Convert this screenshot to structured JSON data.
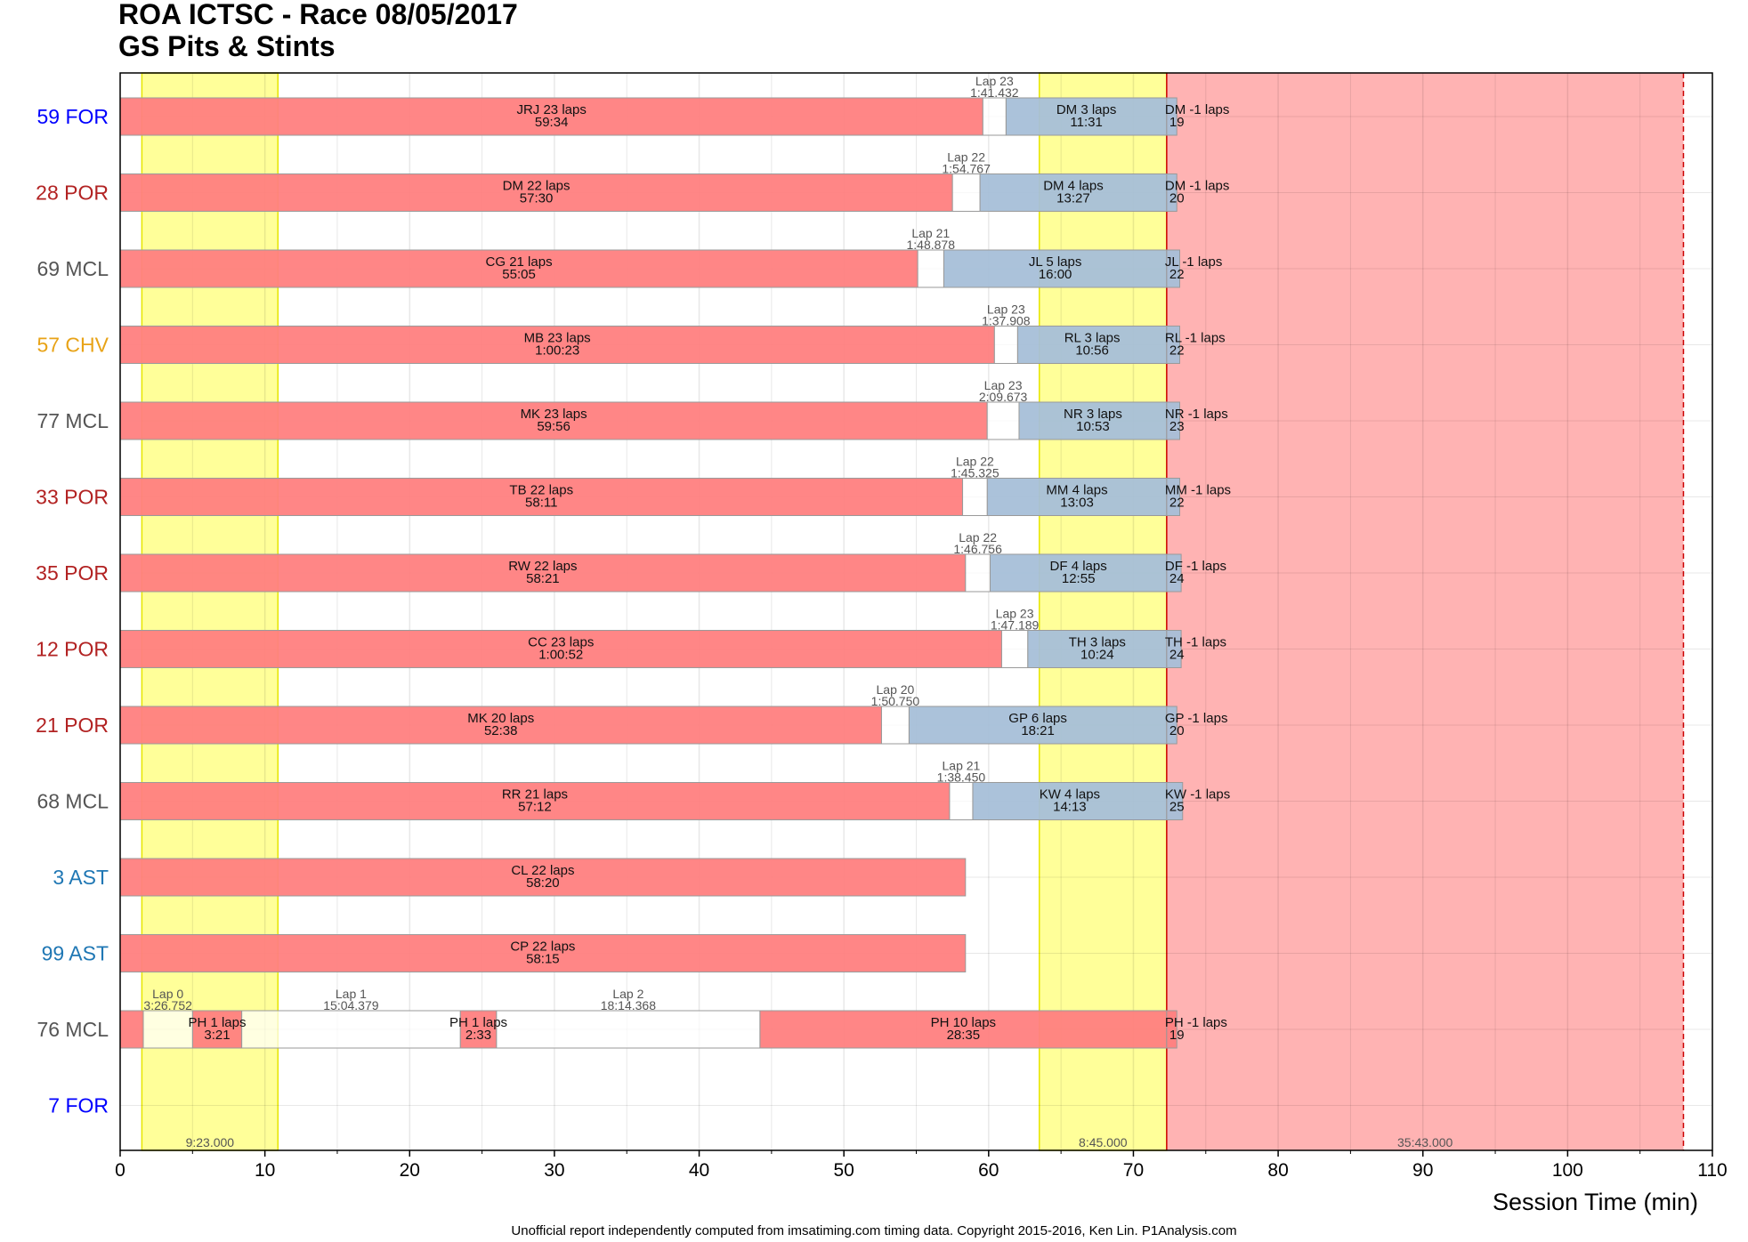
{
  "title_line1": "ROA ICTSC - Race 08/05/2017",
  "title_line2": "GS Pits & Stints",
  "footer": "Unofficial report independently computed from imsatiming.com timing data. Copyright 2015-2016, Ken Lin. P1Analysis.com",
  "colors": {
    "stint_red": "#ff7f7f",
    "stint_blue": "#a6bfd8",
    "caution_yellow": "#ffff99",
    "checkered_red": "#ffb3b3",
    "pit_white": "#ffffff"
  },
  "chart_data": {
    "type": "gantt",
    "xlabel": "Session Time (min)",
    "ylabel": "",
    "xlim": [
      0,
      110
    ],
    "xticks": [
      0,
      10,
      20,
      30,
      40,
      50,
      60,
      70,
      80,
      90,
      100,
      110
    ],
    "grid": true,
    "cautions": [
      {
        "start": 1.5,
        "end": 10.9,
        "label": "9:23.000"
      },
      {
        "start": 63.5,
        "end": 72.3,
        "label": "8:45.000"
      }
    ],
    "finish_period": {
      "start": 72.3,
      "end": 108.0,
      "label": "35:43.000"
    },
    "cars": [
      {
        "label": "59 FOR",
        "color": "#0000ff",
        "stints": [
          {
            "start": 0,
            "end": 59.6,
            "kind": "red",
            "line1": "JRJ 23 laps",
            "line2": "59:34"
          },
          {
            "start": 61.2,
            "end": 72.3,
            "kind": "blue",
            "line1": "DM 3 laps",
            "line2": "11:31"
          },
          {
            "start": 72.3,
            "end": 73.0,
            "kind": "blue",
            "line1": "DM -1 laps",
            "line2": "19"
          }
        ],
        "pits": [
          {
            "start": 59.6,
            "end": 61.2,
            "line1": "Lap 23",
            "line2": "1:41.432"
          }
        ]
      },
      {
        "label": "28 POR",
        "color": "#b22222",
        "stints": [
          {
            "start": 0,
            "end": 57.5,
            "kind": "red",
            "line1": "DM 22 laps",
            "line2": "57:30"
          },
          {
            "start": 59.4,
            "end": 72.3,
            "kind": "blue",
            "line1": "DM 4 laps",
            "line2": "13:27"
          },
          {
            "start": 72.3,
            "end": 73.0,
            "kind": "blue",
            "line1": "DM -1 laps",
            "line2": "20"
          }
        ],
        "pits": [
          {
            "start": 57.5,
            "end": 59.4,
            "line1": "Lap 22",
            "line2": "1:54.767"
          }
        ]
      },
      {
        "label": "69 MCL",
        "color": "#555555",
        "stints": [
          {
            "start": 0,
            "end": 55.1,
            "kind": "red",
            "line1": "CG 21 laps",
            "line2": "55:05"
          },
          {
            "start": 56.9,
            "end": 72.3,
            "kind": "blue",
            "line1": "JL 5 laps",
            "line2": "16:00"
          },
          {
            "start": 72.3,
            "end": 73.2,
            "kind": "blue",
            "line1": "JL -1 laps",
            "line2": "22"
          }
        ],
        "pits": [
          {
            "start": 55.1,
            "end": 56.9,
            "line1": "Lap 21",
            "line2": "1:48.878"
          }
        ]
      },
      {
        "label": "57 CHV",
        "color": "#e8a317",
        "stints": [
          {
            "start": 0,
            "end": 60.4,
            "kind": "red",
            "line1": "MB 23 laps",
            "line2": "1:00:23"
          },
          {
            "start": 62.0,
            "end": 72.3,
            "kind": "blue",
            "line1": "RL 3 laps",
            "line2": "10:56"
          },
          {
            "start": 72.3,
            "end": 73.2,
            "kind": "blue",
            "line1": "RL -1 laps",
            "line2": "22"
          }
        ],
        "pits": [
          {
            "start": 60.4,
            "end": 62.0,
            "line1": "Lap 23",
            "line2": "1:37.908"
          }
        ]
      },
      {
        "label": "77 MCL",
        "color": "#555555",
        "stints": [
          {
            "start": 0,
            "end": 59.9,
            "kind": "red",
            "line1": "MK 23 laps",
            "line2": "59:56"
          },
          {
            "start": 62.1,
            "end": 72.3,
            "kind": "blue",
            "line1": "NR 3 laps",
            "line2": "10:53"
          },
          {
            "start": 72.3,
            "end": 73.2,
            "kind": "blue",
            "line1": "NR -1 laps",
            "line2": "23"
          }
        ],
        "pits": [
          {
            "start": 59.9,
            "end": 62.1,
            "line1": "Lap 23",
            "line2": "2:09.673"
          }
        ]
      },
      {
        "label": "33 POR",
        "color": "#b22222",
        "stints": [
          {
            "start": 0,
            "end": 58.2,
            "kind": "red",
            "line1": "TB 22 laps",
            "line2": "58:11"
          },
          {
            "start": 59.9,
            "end": 72.3,
            "kind": "blue",
            "line1": "MM 4 laps",
            "line2": "13:03"
          },
          {
            "start": 72.3,
            "end": 73.2,
            "kind": "blue",
            "line1": "MM -1 laps",
            "line2": "22"
          }
        ],
        "pits": [
          {
            "start": 58.2,
            "end": 59.9,
            "line1": "Lap 22",
            "line2": "1:45.325"
          }
        ]
      },
      {
        "label": "35 POR",
        "color": "#b22222",
        "stints": [
          {
            "start": 0,
            "end": 58.4,
            "kind": "red",
            "line1": "RW 22 laps",
            "line2": "58:21"
          },
          {
            "start": 60.1,
            "end": 72.3,
            "kind": "blue",
            "line1": "DF 4 laps",
            "line2": "12:55"
          },
          {
            "start": 72.3,
            "end": 73.3,
            "kind": "blue",
            "line1": "DF -1 laps",
            "line2": "24"
          }
        ],
        "pits": [
          {
            "start": 58.4,
            "end": 60.1,
            "line1": "Lap 22",
            "line2": "1:46.756"
          }
        ]
      },
      {
        "label": "12 POR",
        "color": "#b22222",
        "stints": [
          {
            "start": 0,
            "end": 60.9,
            "kind": "red",
            "line1": "CC 23 laps",
            "line2": "1:00:52"
          },
          {
            "start": 62.7,
            "end": 72.3,
            "kind": "blue",
            "line1": "TH 3 laps",
            "line2": "10:24"
          },
          {
            "start": 72.3,
            "end": 73.3,
            "kind": "blue",
            "line1": "TH -1 laps",
            "line2": "24"
          }
        ],
        "pits": [
          {
            "start": 60.9,
            "end": 62.7,
            "line1": "Lap 23",
            "line2": "1:47.189"
          }
        ]
      },
      {
        "label": "21 POR",
        "color": "#b22222",
        "stints": [
          {
            "start": 0,
            "end": 52.6,
            "kind": "red",
            "line1": "MK 20 laps",
            "line2": "52:38"
          },
          {
            "start": 54.5,
            "end": 72.3,
            "kind": "blue",
            "line1": "GP 6 laps",
            "line2": "18:21"
          },
          {
            "start": 72.3,
            "end": 73.0,
            "kind": "blue",
            "line1": "GP -1 laps",
            "line2": "20"
          }
        ],
        "pits": [
          {
            "start": 52.6,
            "end": 54.5,
            "line1": "Lap 20",
            "line2": "1:50.750"
          }
        ]
      },
      {
        "label": "68 MCL",
        "color": "#555555",
        "stints": [
          {
            "start": 0,
            "end": 57.3,
            "kind": "red",
            "line1": "RR 21 laps",
            "line2": "57:12"
          },
          {
            "start": 58.9,
            "end": 72.3,
            "kind": "blue",
            "line1": "KW 4 laps",
            "line2": "14:13"
          },
          {
            "start": 72.3,
            "end": 73.4,
            "kind": "blue",
            "line1": "KW -1 laps",
            "line2": "25"
          }
        ],
        "pits": [
          {
            "start": 57.3,
            "end": 58.9,
            "line1": "Lap 21",
            "line2": "1:38.450"
          }
        ]
      },
      {
        "label": "3 AST",
        "color": "#1f77b4",
        "stints": [
          {
            "start": 0,
            "end": 58.4,
            "kind": "red",
            "line1": "CL 22 laps",
            "line2": "58:20"
          }
        ],
        "pits": []
      },
      {
        "label": "99 AST",
        "color": "#1f77b4",
        "stints": [
          {
            "start": 0,
            "end": 58.4,
            "kind": "red",
            "line1": "CP 22 laps",
            "line2": "58:15"
          }
        ],
        "pits": []
      },
      {
        "label": "76 MCL",
        "color": "#555555",
        "stints": [
          {
            "start": 0,
            "end": 1.6,
            "kind": "red",
            "line1": "",
            "line2": ""
          },
          {
            "start": 5.0,
            "end": 8.4,
            "kind": "red",
            "line1": "PH 1 laps",
            "line2": "3:21"
          },
          {
            "start": 23.5,
            "end": 26.0,
            "kind": "red",
            "line1": "PH 1 laps",
            "line2": "2:33"
          },
          {
            "start": 44.2,
            "end": 72.3,
            "kind": "red",
            "line1": "PH 10 laps",
            "line2": "28:35"
          },
          {
            "start": 72.3,
            "end": 73.0,
            "kind": "red",
            "line1": "PH -1 laps",
            "line2": "19"
          }
        ],
        "pits": [
          {
            "start": 1.6,
            "end": 5.0,
            "line1": "Lap 0",
            "line2": "3:26.752"
          },
          {
            "start": 8.4,
            "end": 23.5,
            "line1": "Lap 1",
            "line2": "15:04.379"
          },
          {
            "start": 26.0,
            "end": 44.2,
            "line1": "Lap 2",
            "line2": "18:14.368"
          }
        ]
      },
      {
        "label": "7 FOR",
        "color": "#0000ff",
        "stints": [],
        "pits": []
      }
    ]
  }
}
